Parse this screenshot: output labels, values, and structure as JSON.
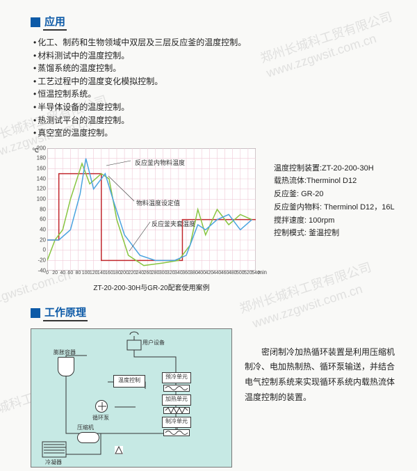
{
  "watermark": {
    "text_cn": "郑州长城科工贸有限公司",
    "text_url": "www.zzgwsit.com.cn"
  },
  "app": {
    "section": {
      "title": "应用",
      "bullets": [
        "化工、制药和生物领域中双层及三层反应釜的温度控制。",
        "材料测试中的温度控制。",
        "蒸馏系统的温度控制。",
        "工艺过程中的温度变化模拟控制。",
        "恒温控制系统。",
        "半导体设备的温度控制。",
        "热测试平台的温度控制。",
        "真空室的温度控制。"
      ]
    }
  },
  "chart": {
    "type": "line",
    "caption": "ZT-20-200-30H与GR-20配套使用案例",
    "y_unit": "℃",
    "x_unit": "min",
    "xlim": [
      0,
      540
    ],
    "ylim": [
      -40,
      200
    ],
    "ytick_step": 20,
    "xtick_step": 20,
    "grid_color": "#efc9d6",
    "border_color": "#3a3a3a",
    "background_color": "#ffffff",
    "line_width": 1.5,
    "annotations": {
      "a1": "反应釜内物料温度",
      "a2": "物料温度设定值",
      "a3": "反应釜夹套温度"
    },
    "series": {
      "setpoint": {
        "color": "#c1272d",
        "points": [
          [
            0,
            20
          ],
          [
            30,
            20
          ],
          [
            30,
            150
          ],
          [
            100,
            150
          ],
          [
            140,
            150
          ],
          [
            140,
            -20
          ],
          [
            350,
            -20
          ],
          [
            350,
            60
          ],
          [
            540,
            60
          ]
        ]
      },
      "material": {
        "color": "#4aa3df",
        "points": [
          [
            0,
            20
          ],
          [
            30,
            20
          ],
          [
            60,
            40
          ],
          [
            85,
            110
          ],
          [
            100,
            180
          ],
          [
            120,
            120
          ],
          [
            150,
            150
          ],
          [
            170,
            100
          ],
          [
            200,
            30
          ],
          [
            240,
            -10
          ],
          [
            280,
            -20
          ],
          [
            330,
            -20
          ],
          [
            360,
            -10
          ],
          [
            390,
            50
          ],
          [
            410,
            40
          ],
          [
            440,
            60
          ],
          [
            470,
            70
          ],
          [
            500,
            40
          ],
          [
            530,
            60
          ]
        ]
      },
      "jacket": {
        "color": "#88c540",
        "points": [
          [
            0,
            -20
          ],
          [
            20,
            20
          ],
          [
            40,
            40
          ],
          [
            60,
            100
          ],
          [
            90,
            170
          ],
          [
            110,
            130
          ],
          [
            140,
            150
          ],
          [
            160,
            140
          ],
          [
            180,
            60
          ],
          [
            210,
            -10
          ],
          [
            250,
            -30
          ],
          [
            300,
            -25
          ],
          [
            340,
            -20
          ],
          [
            370,
            10
          ],
          [
            390,
            80
          ],
          [
            410,
            30
          ],
          [
            440,
            80
          ],
          [
            470,
            50
          ],
          [
            500,
            70
          ],
          [
            530,
            60
          ]
        ]
      }
    },
    "side_info": {
      "l1": "温度控制装置:ZT-20-200-30H",
      "l2": "载热流体:Therminol D12",
      "l3": "反应釜: GR-20",
      "l4": "反应釜内物料: Therminol D12，16L",
      "l5": "搅拌速度: 100rpm",
      "l6": "控制模式: 釜温控制"
    }
  },
  "principle": {
    "title": "工作原理",
    "text": "密闭制冷加热循环装置是利用压缩机制冷、电加热制热、循环泵输送，并结合电气控制系统来实现循环系统内载热流体温度控制的装置。",
    "diagram": {
      "bg": "#c6e9e4",
      "labels": {
        "user_device": "用户设备",
        "expansion": "膨胀容器",
        "temp_ctrl": "温度控制",
        "precool": "预冷单元",
        "heat": "加热单元",
        "cool": "制冷单元",
        "pump": "循环泵",
        "compressor": "压缩机",
        "condenser": "冷凝器"
      }
    }
  }
}
